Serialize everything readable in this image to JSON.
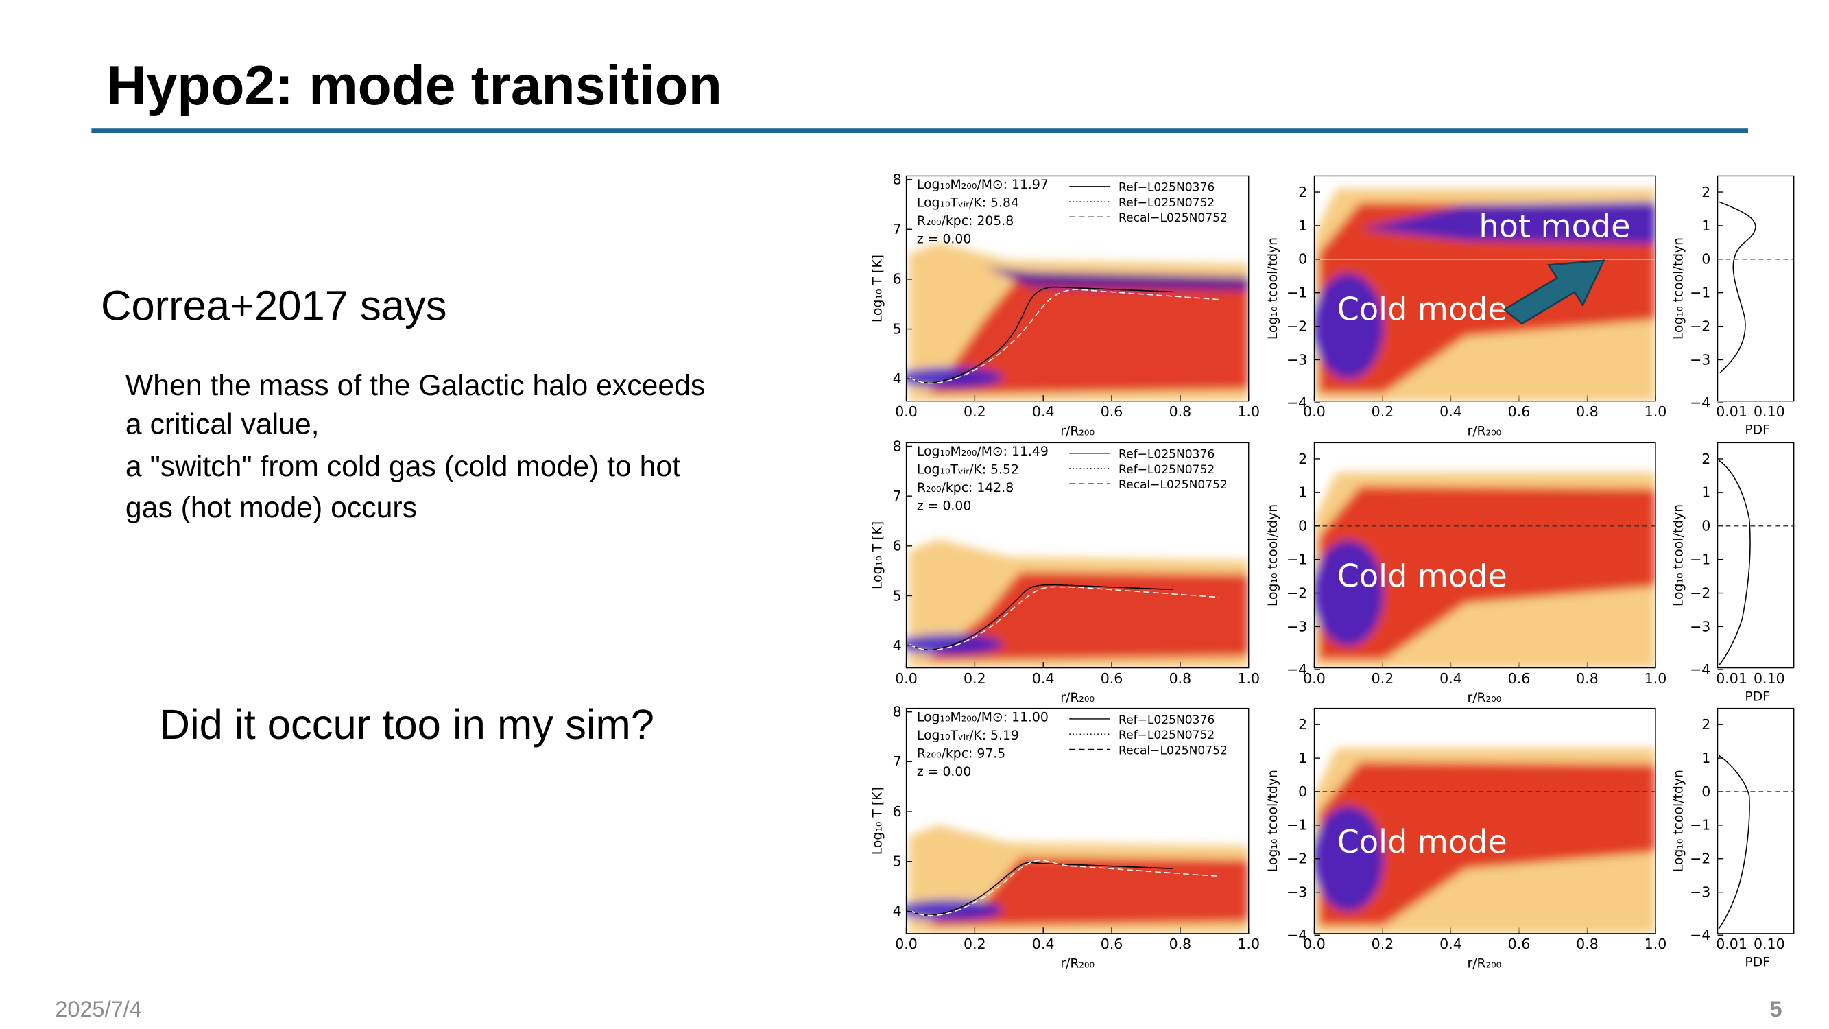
{
  "header": {
    "title": "Hypo2: mode transition"
  },
  "body": {
    "heading": "Correa+2017 says",
    "paragraph": [
      "When the mass of the Galactic halo exceeds",
      "a critical value,",
      "a \"switch\" from cold gas (cold mode) to hot",
      "gas (hot mode) occurs"
    ],
    "question": "Did it occur too in my sim?"
  },
  "figure": {
    "legend": [
      "Ref−L025N0376",
      "Ref−L025N0752",
      "Recal−L025N0752"
    ],
    "axes": {
      "temperature": "Log₁₀ T [K]",
      "radius": "r/R₂₀₀",
      "ratio": "Log₁₀ tcool/tdyn",
      "pdf": "PDF"
    },
    "ticks": {
      "radius": [
        "0.0",
        "0.2",
        "0.4",
        "0.6",
        "0.8",
        "1.0"
      ],
      "temperature": [
        "4",
        "5",
        "6",
        "7",
        "8"
      ],
      "ratio": [
        "−4",
        "−3",
        "−2",
        "−1",
        "0",
        "1",
        "2"
      ],
      "pdf": [
        "0.01",
        "0.10"
      ]
    },
    "rows": [
      {
        "info": [
          "Log₁₀M₂₀₀/M⊙: 11.97",
          "Log₁₀Tᵥᵢᵣ/K: 5.84",
          "R₂₀₀/kpc: 205.8",
          "z = 0.00"
        ],
        "labels": [
          "hot mode",
          "Cold mode"
        ]
      },
      {
        "info": [
          "Log₁₀M₂₀₀/M⊙: 11.49",
          "Log₁₀Tᵥᵢᵣ/K: 5.52",
          "R₂₀₀/kpc: 142.8",
          "z = 0.00"
        ],
        "labels": [
          "Cold mode"
        ]
      },
      {
        "info": [
          "Log₁₀M₂₀₀/M⊙: 11.00",
          "Log₁₀Tᵥᵢᵣ/K: 5.19",
          "R₂₀₀/kpc: 97.5",
          "z = 0.00"
        ],
        "labels": [
          "Cold mode"
        ]
      }
    ]
  },
  "footer": {
    "date": "2025/7/4",
    "page": "5"
  }
}
